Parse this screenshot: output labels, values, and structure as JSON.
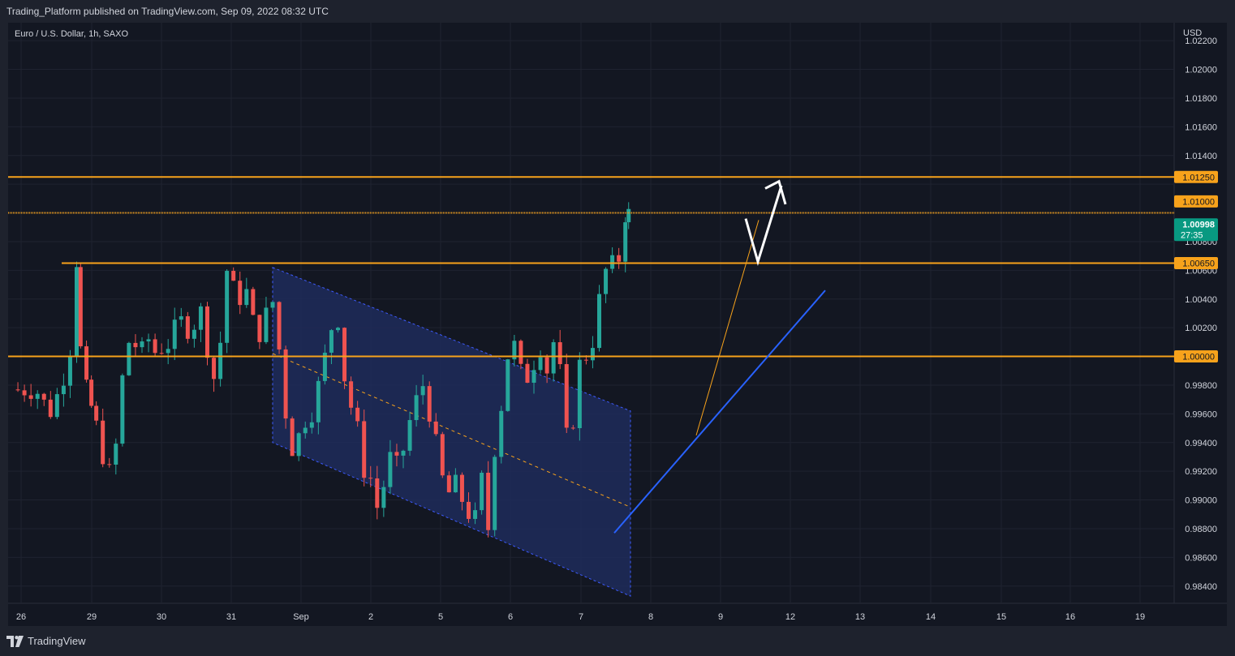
{
  "header": {
    "published_text": "Trading_Platform published on TradingView.com, Sep 09, 2022 08:32 UTC"
  },
  "symbol": {
    "title": "Euro / U.S. Dollar, 1h, SAXO",
    "currency": "USD"
  },
  "footer": {
    "brand": "TradingView"
  },
  "colors": {
    "background": "#131722",
    "grid": "#1f2330",
    "up": "#26a69a",
    "down": "#ef5350",
    "level": "#f7a21b",
    "trend_blue": "#2962ff",
    "channel_fill": "#1e2b5a",
    "current_price_bg": "#089981",
    "text": "#d1d4dc"
  },
  "chart_data": {
    "type": "candlestick",
    "title": "Euro / U.S. Dollar, 1h, SAXO",
    "x_tick_labels": [
      "26",
      "29",
      "30",
      "31",
      "Sep",
      "2",
      "5",
      "6",
      "7",
      "8",
      "9",
      "12",
      "13",
      "14",
      "15",
      "16",
      "19"
    ],
    "y_tick_labels": [
      "1.02200",
      "1.02000",
      "1.01800",
      "1.01600",
      "1.01400",
      "1.01250",
      "1.01000",
      "1.00998",
      "1.00800",
      "1.00650",
      "1.00600",
      "1.00400",
      "1.00200",
      "1.00000",
      "0.99800",
      "0.99600",
      "0.99400",
      "0.99200",
      "0.99000",
      "0.98800",
      "0.98600",
      "0.98400"
    ],
    "ylim": [
      0.9828,
      1.0228
    ],
    "horizontal_levels": [
      {
        "value": 1.0125,
        "label": "1.01250"
      },
      {
        "value": 1.01,
        "label": "1.01000"
      },
      {
        "value": 1.0065,
        "label": "1.00650"
      },
      {
        "value": 1.0,
        "label": "1.00000"
      }
    ],
    "current_price": {
      "value": 1.00998,
      "label": "1.00998",
      "countdown": "27:35"
    },
    "close_path": [
      [
        0,
        0.9977
      ],
      [
        4,
        0.9975
      ],
      [
        6,
        0.9961
      ],
      [
        8,
        0.9985
      ],
      [
        9,
        1.0005
      ],
      [
        10,
        1.0066
      ],
      [
        10.6,
        1.0005
      ],
      [
        11.5,
        0.9978
      ],
      [
        13,
        0.9952
      ],
      [
        14,
        0.993
      ],
      [
        15,
        0.992
      ],
      [
        16,
        0.9938
      ],
      [
        17,
        0.9985
      ],
      [
        18,
        1.001
      ],
      [
        20,
        1.0005
      ],
      [
        21,
        1.0012
      ],
      [
        22,
        1.0003
      ],
      [
        24,
        1.0008
      ],
      [
        25,
        1.002
      ],
      [
        26,
        1.0025
      ],
      [
        27,
        1.0018
      ],
      [
        28,
        1.0022
      ],
      [
        29,
        1.0032
      ],
      [
        30,
        1.0005
      ],
      [
        31,
        0.9985
      ],
      [
        32,
        1.001
      ],
      [
        33,
        1.006
      ],
      [
        34,
        1.0048
      ],
      [
        35,
        1.004
      ],
      [
        36,
        1.0045
      ],
      [
        37,
        1.0025
      ],
      [
        38,
        1.0015
      ],
      [
        39,
        1.003
      ],
      [
        40,
        1.0038
      ],
      [
        41,
        1.0005
      ],
      [
        42,
        0.996
      ],
      [
        43,
        0.9935
      ],
      [
        44,
        0.9945
      ],
      [
        45,
        0.9955
      ],
      [
        46,
        0.996
      ],
      [
        47,
        0.998
      ],
      [
        48,
        1.0
      ],
      [
        49,
        1.002
      ],
      [
        50,
        1.0025
      ],
      [
        51,
        0.9985
      ],
      [
        52,
        0.9965
      ],
      [
        53,
        0.995
      ],
      [
        54,
        0.992
      ],
      [
        55,
        0.9915
      ],
      [
        56,
        0.9895
      ],
      [
        57,
        0.991
      ],
      [
        58,
        0.993
      ],
      [
        59,
        0.9925
      ],
      [
        60,
        0.9935
      ],
      [
        61,
        0.9955
      ],
      [
        62,
        0.997
      ],
      [
        63,
        0.998
      ],
      [
        64,
        0.996
      ],
      [
        65,
        0.994
      ],
      [
        66,
        0.9915
      ],
      [
        67,
        0.9905
      ],
      [
        68,
        0.9912
      ],
      [
        69,
        0.99
      ],
      [
        70,
        0.989
      ],
      [
        71,
        0.9888
      ],
      [
        72,
        0.9915
      ],
      [
        73,
        0.988
      ],
      [
        74,
        0.9935
      ],
      [
        75,
        0.9965
      ],
      [
        76,
        1.0
      ],
      [
        77,
        1.0008
      ],
      [
        78,
        0.999
      ],
      [
        79,
        0.9985
      ],
      [
        80,
        0.9995
      ],
      [
        81,
        1.0005
      ],
      [
        82,
        0.999
      ],
      [
        83,
        1.001
      ],
      [
        84,
        0.999
      ],
      [
        85,
        0.9945
      ],
      [
        86,
        0.9955
      ],
      [
        87,
        0.9995
      ],
      [
        88,
        1.0
      ],
      [
        89,
        1.001
      ],
      [
        90,
        1.004
      ],
      [
        91,
        1.006
      ],
      [
        92,
        1.0065
      ],
      [
        93,
        1.0068
      ],
      [
        94,
        1.0098
      ],
      [
        94.5,
        1.00998
      ]
    ]
  }
}
